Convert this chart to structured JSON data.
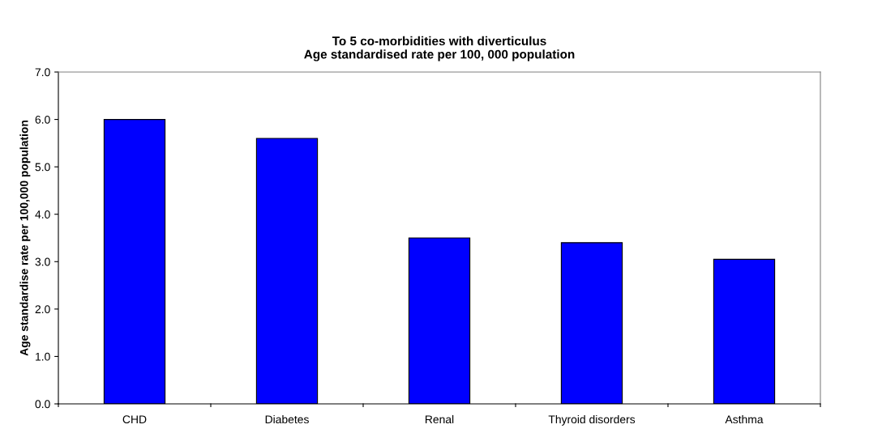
{
  "chart_data": {
    "type": "bar",
    "title": "To 5 co-morbidities with diverticulus\nAge standardised rate per 100, 000 population",
    "ylabel": "Age standardise rate per 100,000 population",
    "categories": [
      "CHD",
      "Diabetes",
      "Renal",
      "Thyroid disorders",
      "Asthma"
    ],
    "values": [
      6.0,
      5.6,
      3.5,
      3.4,
      3.05
    ],
    "color": "#0000ff",
    "ylim": [
      0,
      7
    ],
    "yticks": [
      {
        "value": 0,
        "label": "0.0"
      },
      {
        "value": 1,
        "label": "1.0"
      },
      {
        "value": 2,
        "label": "2.0"
      },
      {
        "value": 3,
        "label": "3.0"
      },
      {
        "value": 4,
        "label": "4.0"
      },
      {
        "value": 5,
        "label": "5.0"
      },
      {
        "value": 6,
        "label": "6.0"
      },
      {
        "value": 7,
        "label": "7.0"
      }
    ],
    "grid": false,
    "legend": false
  }
}
